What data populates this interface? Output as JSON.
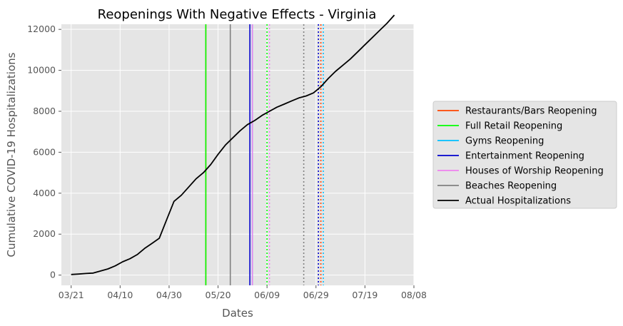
{
  "chart_data": {
    "type": "line",
    "title": "Reopenings With Negative Effects - Virginia",
    "xlabel": "Dates",
    "ylabel": "Cumulative COVID-19 Hospitalizations",
    "x_ticks": [
      "03/21",
      "04/10",
      "04/30",
      "05/20",
      "06/09",
      "06/29",
      "07/19",
      "08/08"
    ],
    "y_ticks": [
      0,
      2000,
      4000,
      6000,
      8000,
      10000,
      12000
    ],
    "xlim": [
      "03/17",
      "08/08"
    ],
    "ylim": [
      -500,
      12250
    ],
    "grid": true,
    "legend_position": "right",
    "background": "#e5e5e5",
    "series": [
      {
        "name": "Actual Hospitalizations",
        "color": "#000000",
        "x": [
          "03/21",
          "03/24",
          "03/27",
          "03/30",
          "04/02",
          "04/05",
          "04/08",
          "04/11",
          "04/14",
          "04/17",
          "04/20",
          "04/23",
          "04/26",
          "04/29",
          "05/02",
          "05/05",
          "05/08",
          "05/11",
          "05/14",
          "05/17",
          "05/20",
          "05/23",
          "05/26",
          "05/29",
          "06/01",
          "06/04",
          "06/07",
          "06/10",
          "06/13",
          "06/16",
          "06/19",
          "06/22",
          "06/25",
          "06/28",
          "07/01",
          "07/04",
          "07/07",
          "07/10",
          "07/13",
          "07/16",
          "07/19",
          "07/22",
          "07/25",
          "07/28",
          "07/31"
        ],
        "y": [
          30,
          50,
          80,
          100,
          200,
          300,
          450,
          650,
          800,
          1000,
          1300,
          1550,
          1800,
          2700,
          3600,
          3900,
          4300,
          4700,
          5000,
          5400,
          5900,
          6350,
          6700,
          7050,
          7350,
          7550,
          7800,
          8000,
          8200,
          8350,
          8500,
          8650,
          8750,
          8900,
          9200,
          9600,
          9950,
          10250,
          10550,
          10900,
          11250,
          11600,
          11950,
          12300,
          12700
        ]
      }
    ],
    "reopenings": [
      {
        "name": "Restaurants/Bars Reopening",
        "color": "#ff4500",
        "solid": "05/15",
        "dotted": "07/01"
      },
      {
        "name": "Full Retail Reopening",
        "color": "#00ff00",
        "solid": "05/15",
        "dotted": "06/09"
      },
      {
        "name": "Gyms Reopening",
        "color": "#00bfff",
        "solid": "06/03",
        "dotted": "07/02"
      },
      {
        "name": "Entertainment Reopening",
        "color": "#0000cd",
        "solid": "06/02",
        "dotted": "06/30"
      },
      {
        "name": "Houses of Worship Reopening",
        "color": "#ee82ee",
        "solid": "06/03",
        "dotted": "06/10"
      },
      {
        "name": "Beaches Reopening",
        "color": "#808080",
        "solid": "05/25",
        "dotted": "06/24"
      }
    ]
  }
}
